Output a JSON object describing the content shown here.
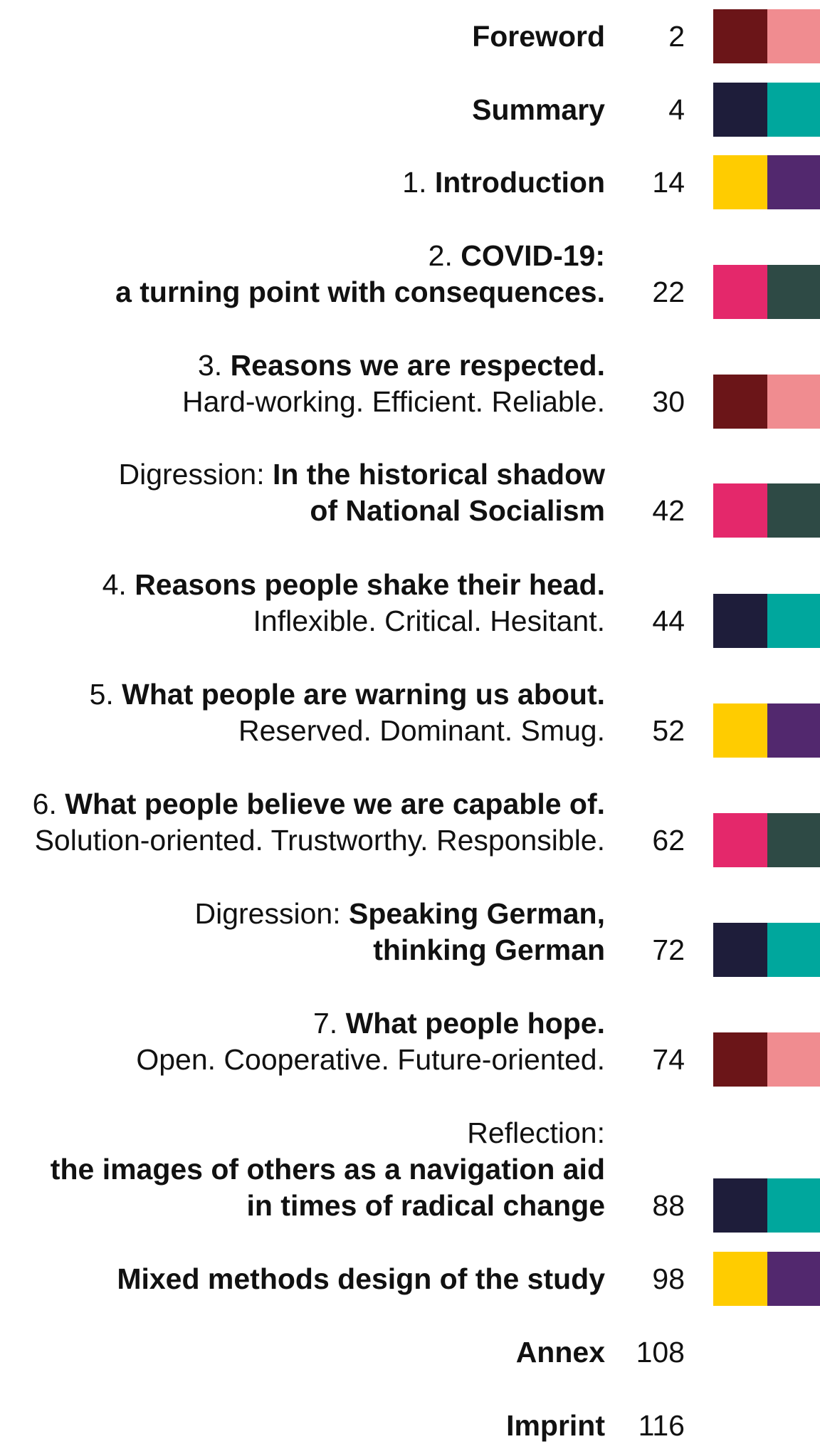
{
  "colors": {
    "maroon": "#6b1518",
    "pink": "#f08c90",
    "navy": "#1e1d3a",
    "teal": "#00a79d",
    "yellow": "#ffcc00",
    "purple": "#52286e",
    "magenta": "#e4286b",
    "darkgreen": "#2e4a45"
  },
  "entries": [
    {
      "lines": [
        [
          {
            "t": "Foreword",
            "b": true
          }
        ]
      ],
      "page": "2",
      "swatch": [
        "maroon",
        "pink"
      ]
    },
    {
      "lines": [
        [
          {
            "t": "Summary",
            "b": true
          }
        ]
      ],
      "page": "4",
      "swatch": [
        "navy",
        "teal"
      ]
    },
    {
      "lines": [
        [
          {
            "t": "1. ",
            "b": false
          },
          {
            "t": "Introduction",
            "b": true
          }
        ]
      ],
      "page": "14",
      "swatch": [
        "yellow",
        "purple"
      ]
    },
    {
      "lines": [
        [
          {
            "t": "2. ",
            "b": false
          },
          {
            "t": "COVID-19:",
            "b": true
          }
        ],
        [
          {
            "t": "a turning point with consequences.",
            "b": true
          }
        ]
      ],
      "page": "22",
      "swatch": [
        "magenta",
        "darkgreen"
      ]
    },
    {
      "lines": [
        [
          {
            "t": "3. ",
            "b": false
          },
          {
            "t": "Reasons we are respected.",
            "b": true
          }
        ],
        [
          {
            "t": "Hard-working. Efficient. Reliable.",
            "b": false
          }
        ]
      ],
      "page": "30",
      "swatch": [
        "maroon",
        "pink"
      ]
    },
    {
      "lines": [
        [
          {
            "t": "Digression: ",
            "b": false
          },
          {
            "t": "In the historical shadow",
            "b": true
          }
        ],
        [
          {
            "t": "of National Socialism",
            "b": true
          }
        ]
      ],
      "page": "42",
      "swatch": [
        "magenta",
        "darkgreen"
      ]
    },
    {
      "lines": [
        [
          {
            "t": "4. ",
            "b": false
          },
          {
            "t": "Reasons people shake their head.",
            "b": true
          }
        ],
        [
          {
            "t": "Inflexible. Critical. Hesitant.",
            "b": false
          }
        ]
      ],
      "page": "44",
      "swatch": [
        "navy",
        "teal"
      ]
    },
    {
      "lines": [
        [
          {
            "t": "5. ",
            "b": false
          },
          {
            "t": "What people are warning us about.",
            "b": true
          }
        ],
        [
          {
            "t": "Reserved. Dominant. Smug.",
            "b": false
          }
        ]
      ],
      "page": "52",
      "swatch": [
        "yellow",
        "purple"
      ]
    },
    {
      "lines": [
        [
          {
            "t": "6. ",
            "b": false
          },
          {
            "t": "What people believe we are capable of.",
            "b": true
          }
        ],
        [
          {
            "t": "Solution-oriented. Trustworthy. Responsible.",
            "b": false
          }
        ]
      ],
      "page": "62",
      "swatch": [
        "magenta",
        "darkgreen"
      ]
    },
    {
      "lines": [
        [
          {
            "t": "Digression: ",
            "b": false
          },
          {
            "t": "Speaking German,",
            "b": true
          }
        ],
        [
          {
            "t": "thinking German",
            "b": true
          }
        ]
      ],
      "page": "72",
      "swatch": [
        "navy",
        "teal"
      ]
    },
    {
      "lines": [
        [
          {
            "t": "7. ",
            "b": false
          },
          {
            "t": "What people hope.",
            "b": true
          }
        ],
        [
          {
            "t": "Open. Cooperative. Future-oriented.",
            "b": false
          }
        ]
      ],
      "page": "74",
      "swatch": [
        "maroon",
        "pink"
      ]
    },
    {
      "lines": [
        [
          {
            "t": "Reflection:",
            "b": false
          }
        ],
        [
          {
            "t": "the images of others as a navigation aid",
            "b": true
          }
        ],
        [
          {
            "t": "in times of radical change",
            "b": true
          }
        ]
      ],
      "page": "88",
      "swatch": [
        "navy",
        "teal"
      ]
    },
    {
      "lines": [
        [
          {
            "t": "Mixed methods design of the study",
            "b": true
          }
        ]
      ],
      "page": "98",
      "swatch": [
        "yellow",
        "purple"
      ]
    },
    {
      "lines": [
        [
          {
            "t": "Annex",
            "b": true
          }
        ]
      ],
      "page": "108",
      "swatch": null
    },
    {
      "lines": [
        [
          {
            "t": "Imprint",
            "b": true
          }
        ]
      ],
      "page": "116",
      "swatch": null
    }
  ]
}
